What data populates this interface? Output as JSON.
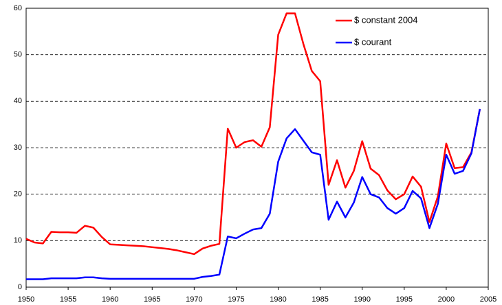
{
  "chart_data": {
    "type": "line",
    "x": [
      1950,
      1951,
      1952,
      1953,
      1954,
      1955,
      1956,
      1957,
      1958,
      1959,
      1960,
      1961,
      1962,
      1963,
      1964,
      1965,
      1966,
      1967,
      1968,
      1969,
      1970,
      1971,
      1972,
      1973,
      1974,
      1975,
      1976,
      1977,
      1978,
      1979,
      1980,
      1981,
      1982,
      1983,
      1984,
      1985,
      1986,
      1987,
      1988,
      1989,
      1990,
      1991,
      1992,
      1993,
      1994,
      1995,
      1996,
      1997,
      1998,
      1999,
      2000,
      2001,
      2002,
      2003,
      2004
    ],
    "series": [
      {
        "name": "$ constant 2004",
        "color": "#ff0000",
        "values": [
          10.4,
          9.6,
          9.4,
          11.9,
          11.8,
          11.8,
          11.7,
          13.2,
          12.8,
          10.8,
          9.2,
          9.1,
          9.0,
          8.9,
          8.8,
          8.6,
          8.4,
          8.2,
          7.9,
          7.5,
          7.1,
          8.3,
          8.9,
          9.3,
          34.1,
          30.0,
          31.2,
          31.6,
          30.2,
          34.4,
          54.3,
          58.9,
          58.9,
          52.3,
          46.5,
          44.3,
          22.0,
          27.3,
          21.4,
          25.0,
          31.4,
          25.5,
          24.1,
          20.8,
          18.9,
          20.0,
          23.8,
          21.6,
          14.0,
          19.5,
          30.9,
          25.6,
          25.8,
          29.0,
          38.3
        ]
      },
      {
        "name": "$ courant",
        "color": "#0000ff",
        "values": [
          1.7,
          1.7,
          1.7,
          1.9,
          1.9,
          1.9,
          1.9,
          2.1,
          2.1,
          1.9,
          1.8,
          1.8,
          1.8,
          1.8,
          1.8,
          1.8,
          1.8,
          1.8,
          1.8,
          1.8,
          1.8,
          2.2,
          2.4,
          2.7,
          10.9,
          10.5,
          11.5,
          12.4,
          12.7,
          15.8,
          27.0,
          32.0,
          34.0,
          31.5,
          29.0,
          28.5,
          14.5,
          18.4,
          15.0,
          18.2,
          23.7,
          20.0,
          19.3,
          17.0,
          15.8,
          17.0,
          20.7,
          19.1,
          12.7,
          17.9,
          28.5,
          24.4,
          25.0,
          28.8,
          38.3
        ]
      }
    ],
    "xlim": [
      1950,
      2005
    ],
    "xticks": [
      1950,
      1955,
      1960,
      1965,
      1970,
      1975,
      1980,
      1985,
      1990,
      1995,
      2000,
      2005
    ],
    "ylim": [
      0,
      60
    ],
    "yticks": [
      0,
      10,
      20,
      30,
      40,
      50,
      60
    ],
    "grid": true,
    "legend": "upper-right"
  }
}
